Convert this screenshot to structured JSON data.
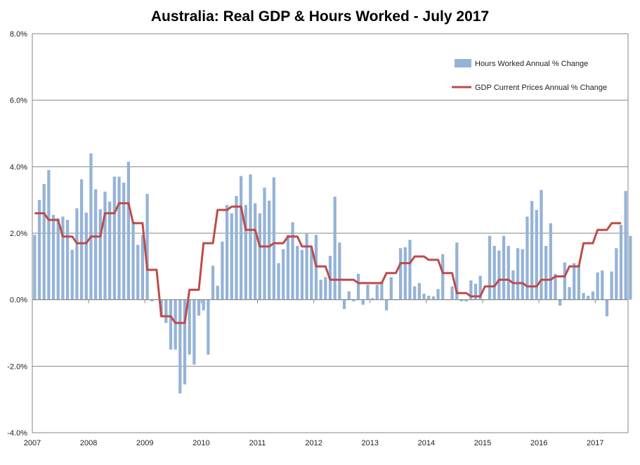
{
  "chart_data": {
    "type": "bar",
    "title": "Australia: Real GDP & Hours Worked - July 2017",
    "xlabel": "",
    "ylabel": "",
    "ylim": [
      -4.0,
      8.0
    ],
    "y_ticks": [
      "-4.0%",
      "-2.0%",
      "0.0%",
      "2.0%",
      "4.0%",
      "6.0%",
      "8.0%"
    ],
    "y_tick_values": [
      -4,
      -2,
      0,
      2,
      4,
      6,
      8
    ],
    "x_tick_labels": [
      "2007",
      "2008",
      "2009",
      "2010",
      "2011",
      "2012",
      "2013",
      "2014",
      "2015",
      "2016",
      "2017"
    ],
    "grid": "horizontal",
    "legend_position": "top-right",
    "period_start": "2007-01",
    "period_end": "2017-07",
    "series": [
      {
        "name": "Hours Worked Annual % Change",
        "kind": "bar",
        "color": "#95B3D7",
        "values": [
          1.95,
          3.0,
          3.48,
          3.9,
          2.55,
          2.45,
          2.5,
          2.4,
          1.5,
          2.75,
          3.62,
          2.62,
          4.4,
          3.32,
          2.72,
          3.25,
          2.95,
          3.7,
          3.7,
          3.52,
          4.15,
          2.35,
          1.65,
          1.95,
          3.18,
          -0.05,
          0.0,
          -0.5,
          -0.7,
          -1.5,
          -1.5,
          -2.82,
          -2.55,
          -1.65,
          -1.95,
          -0.48,
          -0.32,
          -1.65,
          1.02,
          0.42,
          1.75,
          2.85,
          2.6,
          3.12,
          3.72,
          2.85,
          3.77,
          2.9,
          2.6,
          3.37,
          2.98,
          3.68,
          1.1,
          1.52,
          1.95,
          2.33,
          1.62,
          1.5,
          1.98,
          1.55,
          1.95,
          0.6,
          0.68,
          1.32,
          3.1,
          1.72,
          -0.28,
          0.25,
          -0.05,
          0.78,
          -0.15,
          0.45,
          0.05,
          0.45,
          0.55,
          -0.32,
          0.68,
          0.02,
          1.55,
          1.58,
          1.8,
          0.4,
          0.5,
          0.18,
          0.12,
          0.1,
          0.32,
          1.37,
          0.0,
          0.4,
          1.72,
          -0.05,
          -0.05,
          0.58,
          0.48,
          0.72,
          0.0,
          1.92,
          1.62,
          1.48,
          1.92,
          1.62,
          0.88,
          1.55,
          1.52,
          2.5,
          2.97,
          2.7,
          3.3,
          1.62,
          2.3,
          0.78,
          -0.18,
          1.12,
          0.38,
          1.1,
          1.05,
          0.2,
          0.12,
          0.25,
          0.82,
          0.88,
          -0.5,
          0.85,
          1.55,
          2.25,
          3.27,
          1.92
        ]
      },
      {
        "name": "GDP Current Prices Annual % Change",
        "kind": "line",
        "color": "#BE4B48",
        "points": [
          [
            "2007-01",
            2.6
          ],
          [
            "2007-03",
            2.6
          ],
          [
            "2007-04",
            2.4
          ],
          [
            "2007-06",
            2.4
          ],
          [
            "2007-07",
            1.9
          ],
          [
            "2007-09",
            1.9
          ],
          [
            "2007-10",
            1.7
          ],
          [
            "2007-12",
            1.7
          ],
          [
            "2008-01",
            1.9
          ],
          [
            "2008-03",
            1.9
          ],
          [
            "2008-04",
            2.6
          ],
          [
            "2008-06",
            2.6
          ],
          [
            "2008-07",
            2.9
          ],
          [
            "2008-09",
            2.9
          ],
          [
            "2008-10",
            2.3
          ],
          [
            "2008-12",
            2.3
          ],
          [
            "2009-01",
            0.9
          ],
          [
            "2009-03",
            0.9
          ],
          [
            "2009-04",
            -0.5
          ],
          [
            "2009-06",
            -0.5
          ],
          [
            "2009-07",
            -0.7
          ],
          [
            "2009-09",
            -0.7
          ],
          [
            "2009-10",
            0.3
          ],
          [
            "2009-12",
            0.3
          ],
          [
            "2010-01",
            1.7
          ],
          [
            "2010-03",
            1.7
          ],
          [
            "2010-04",
            2.7
          ],
          [
            "2010-06",
            2.7
          ],
          [
            "2010-07",
            2.8
          ],
          [
            "2010-09",
            2.8
          ],
          [
            "2010-10",
            2.1
          ],
          [
            "2010-12",
            2.1
          ],
          [
            "2011-01",
            1.6
          ],
          [
            "2011-03",
            1.6
          ],
          [
            "2011-04",
            1.7
          ],
          [
            "2011-06",
            1.7
          ],
          [
            "2011-07",
            1.9
          ],
          [
            "2011-09",
            1.9
          ],
          [
            "2011-10",
            1.6
          ],
          [
            "2011-12",
            1.6
          ],
          [
            "2012-01",
            1.0
          ],
          [
            "2012-03",
            1.0
          ],
          [
            "2012-04",
            0.6
          ],
          [
            "2012-06",
            0.6
          ],
          [
            "2012-07",
            0.6
          ],
          [
            "2012-09",
            0.6
          ],
          [
            "2012-10",
            0.5
          ],
          [
            "2012-12",
            0.5
          ],
          [
            "2013-01",
            0.5
          ],
          [
            "2013-03",
            0.5
          ],
          [
            "2013-04",
            0.8
          ],
          [
            "2013-06",
            0.8
          ],
          [
            "2013-07",
            1.1
          ],
          [
            "2013-09",
            1.1
          ],
          [
            "2013-10",
            1.3
          ],
          [
            "2013-12",
            1.3
          ],
          [
            "2014-01",
            1.2
          ],
          [
            "2014-03",
            1.2
          ],
          [
            "2014-04",
            0.8
          ],
          [
            "2014-06",
            0.8
          ],
          [
            "2014-07",
            0.2
          ],
          [
            "2014-09",
            0.2
          ],
          [
            "2014-10",
            0.1
          ],
          [
            "2014-12",
            0.1
          ],
          [
            "2015-01",
            0.4
          ],
          [
            "2015-03",
            0.4
          ],
          [
            "2015-04",
            0.6
          ],
          [
            "2015-06",
            0.6
          ],
          [
            "2015-07",
            0.5
          ],
          [
            "2015-09",
            0.5
          ],
          [
            "2015-10",
            0.4
          ],
          [
            "2015-12",
            0.4
          ],
          [
            "2016-01",
            0.6
          ],
          [
            "2016-03",
            0.6
          ],
          [
            "2016-04",
            0.7
          ],
          [
            "2016-06",
            0.7
          ],
          [
            "2016-07",
            1.0
          ],
          [
            "2016-09",
            1.0
          ],
          [
            "2016-10",
            1.7
          ],
          [
            "2016-12",
            1.7
          ],
          [
            "2017-01",
            2.1
          ],
          [
            "2017-03",
            2.1
          ],
          [
            "2017-04",
            2.3
          ],
          [
            "2017-06",
            2.3
          ]
        ]
      }
    ]
  }
}
